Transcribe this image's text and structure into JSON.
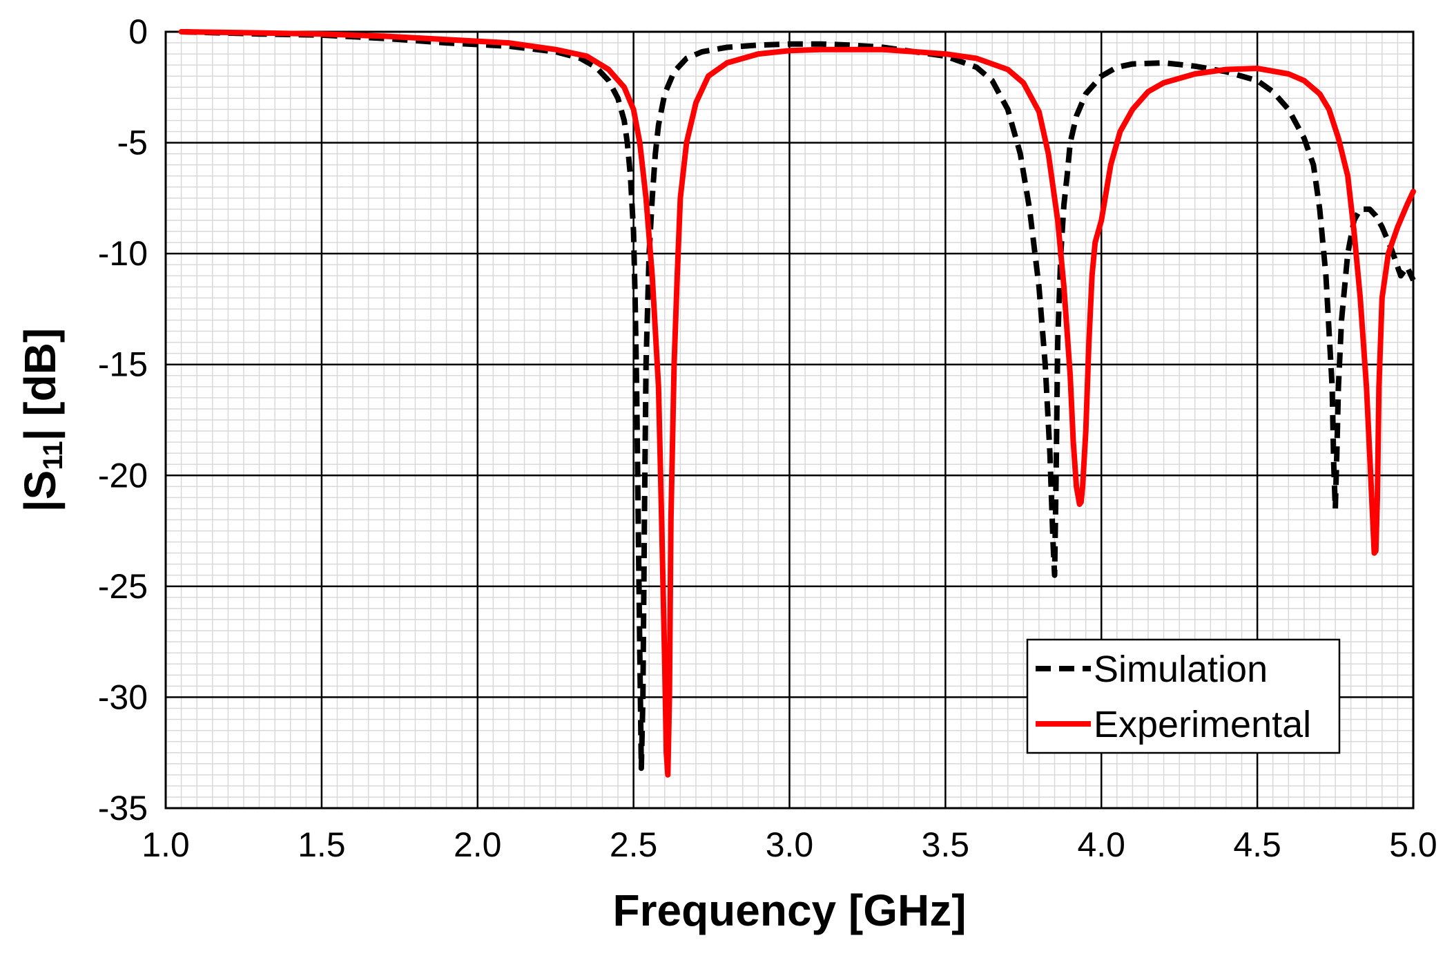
{
  "chart_data": {
    "type": "line",
    "xlabel": "Frequency [GHz]",
    "ylabel": "|S11| [dB]",
    "ylabel_main": "|S",
    "ylabel_sub": "11",
    "ylabel_tail": "| [dB]",
    "xlim": [
      1.0,
      5.0
    ],
    "ylim": [
      -35,
      0
    ],
    "x_ticks": [
      "1.0",
      "1.5",
      "2.0",
      "2.5",
      "3.0",
      "3.5",
      "4.0",
      "4.5",
      "5.0"
    ],
    "y_ticks": [
      "0",
      "-5",
      "-10",
      "-15",
      "-20",
      "-25",
      "-30",
      "-35"
    ],
    "grid": "major and minor",
    "legend_position": "bottom-right",
    "series": [
      {
        "name": "Simulation",
        "style": "dashed",
        "color": "#000000",
        "x": [
          1.05,
          1.3,
          1.5,
          1.7,
          1.9,
          2.1,
          2.25,
          2.33,
          2.38,
          2.42,
          2.45,
          2.47,
          2.48,
          2.49,
          2.5,
          2.505,
          2.51,
          2.515,
          2.52,
          2.525,
          2.53,
          2.535,
          2.54,
          2.55,
          2.56,
          2.57,
          2.58,
          2.6,
          2.63,
          2.67,
          2.72,
          2.8,
          2.9,
          3.0,
          3.1,
          3.2,
          3.3,
          3.4,
          3.5,
          3.6,
          3.65,
          3.7,
          3.74,
          3.77,
          3.8,
          3.82,
          3.835,
          3.845,
          3.85,
          3.855,
          3.86,
          3.87,
          3.88,
          3.89,
          3.9,
          3.92,
          3.95,
          4.0,
          4.05,
          4.1,
          4.2,
          4.3,
          4.4,
          4.5,
          4.55,
          4.6,
          4.65,
          4.68,
          4.7,
          4.72,
          4.73,
          4.74,
          4.745,
          4.75,
          4.755,
          4.76,
          4.77,
          4.79,
          4.81,
          4.83,
          4.86,
          4.88,
          4.9,
          4.93,
          4.96,
          4.98,
          5.0
        ],
        "y": [
          0,
          -0.1,
          -0.15,
          -0.3,
          -0.5,
          -0.65,
          -0.9,
          -1.2,
          -1.6,
          -2.2,
          -3.0,
          -4.0,
          -5.0,
          -6.5,
          -9.0,
          -12.0,
          -16.0,
          -22.0,
          -28.0,
          -33.2,
          -30.0,
          -22.0,
          -15.0,
          -10.0,
          -7.5,
          -5.5,
          -4.2,
          -2.8,
          -1.8,
          -1.2,
          -0.9,
          -0.7,
          -0.6,
          -0.55,
          -0.55,
          -0.6,
          -0.7,
          -0.9,
          -1.1,
          -1.6,
          -2.2,
          -3.5,
          -5.5,
          -8.0,
          -11.5,
          -15.0,
          -19.0,
          -23.0,
          -24.5,
          -20.0,
          -14.0,
          -10.0,
          -7.8,
          -6.5,
          -5.0,
          -3.8,
          -2.8,
          -2.0,
          -1.6,
          -1.45,
          -1.4,
          -1.55,
          -1.8,
          -2.2,
          -2.7,
          -3.5,
          -4.8,
          -6.0,
          -8.0,
          -11.0,
          -13.5,
          -16.0,
          -19.5,
          -21.5,
          -19.0,
          -16.0,
          -13.0,
          -10.0,
          -8.5,
          -8.0,
          -8.0,
          -8.3,
          -8.8,
          -9.8,
          -11.0,
          -10.6,
          -11.2
        ]
      },
      {
        "name": "Experimental",
        "style": "solid",
        "color": "#ff0000",
        "x": [
          1.05,
          1.3,
          1.5,
          1.7,
          1.9,
          2.1,
          2.25,
          2.35,
          2.42,
          2.47,
          2.5,
          2.52,
          2.54,
          2.56,
          2.58,
          2.59,
          2.6,
          2.605,
          2.61,
          2.615,
          2.62,
          2.63,
          2.64,
          2.65,
          2.67,
          2.7,
          2.74,
          2.8,
          2.9,
          3.0,
          3.1,
          3.2,
          3.3,
          3.4,
          3.5,
          3.6,
          3.7,
          3.75,
          3.8,
          3.83,
          3.86,
          3.88,
          3.9,
          3.91,
          3.92,
          3.93,
          3.935,
          3.94,
          3.95,
          3.96,
          3.97,
          3.98,
          4.0,
          4.03,
          4.06,
          4.1,
          4.15,
          4.2,
          4.3,
          4.4,
          4.5,
          4.6,
          4.65,
          4.7,
          4.73,
          4.76,
          4.79,
          4.81,
          4.83,
          4.85,
          4.86,
          4.87,
          4.875,
          4.88,
          4.885,
          4.89,
          4.9,
          4.92,
          4.95,
          4.98,
          5.0
        ],
        "y": [
          0,
          -0.05,
          -0.1,
          -0.2,
          -0.35,
          -0.5,
          -0.8,
          -1.1,
          -1.7,
          -2.5,
          -3.5,
          -5.0,
          -7.5,
          -11.0,
          -16.0,
          -22.0,
          -28.5,
          -32.5,
          -33.5,
          -30.0,
          -22.0,
          -15.0,
          -11.0,
          -7.5,
          -5.0,
          -3.2,
          -2.0,
          -1.4,
          -1.0,
          -0.85,
          -0.8,
          -0.8,
          -0.8,
          -0.9,
          -1.0,
          -1.2,
          -1.7,
          -2.3,
          -3.6,
          -5.5,
          -8.5,
          -11.5,
          -15.5,
          -18.5,
          -20.5,
          -21.3,
          -21.2,
          -20.5,
          -18.0,
          -14.0,
          -11.0,
          -9.5,
          -8.5,
          -6.0,
          -4.5,
          -3.5,
          -2.7,
          -2.3,
          -1.9,
          -1.7,
          -1.65,
          -1.9,
          -2.2,
          -2.8,
          -3.5,
          -4.8,
          -6.5,
          -9.0,
          -12.0,
          -16.0,
          -19.0,
          -22.0,
          -23.5,
          -23.4,
          -21.0,
          -16.0,
          -12.0,
          -10.0,
          -8.8,
          -7.8,
          -7.2
        ]
      }
    ]
  }
}
